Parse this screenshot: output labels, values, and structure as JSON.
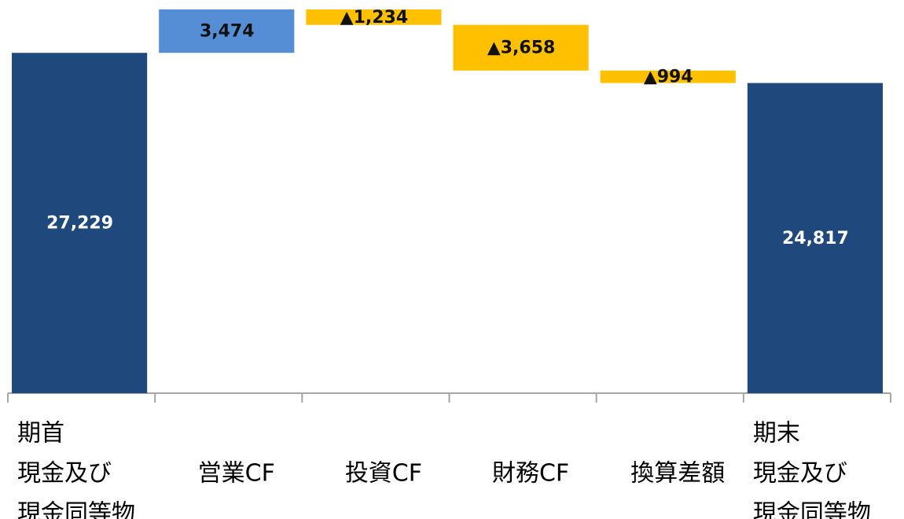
{
  "chart_data": {
    "type": "waterfall",
    "categories": [
      [
        "期首",
        "現金及び",
        "現金同等物"
      ],
      [
        "営業CF"
      ],
      [
        "投資CF"
      ],
      [
        "財務CF"
      ],
      [
        "換算差額"
      ],
      [
        "期末",
        "現金及び",
        "現金同等物"
      ]
    ],
    "values": [
      27229,
      3474,
      -1234,
      -3658,
      -994,
      24817
    ],
    "value_labels": [
      "27,229",
      "3,474",
      "▲1,234",
      "▲3,658",
      "▲994",
      "24,817"
    ],
    "measure": [
      "total",
      "relative",
      "relative",
      "relative",
      "relative",
      "total"
    ],
    "colors": {
      "total": "#1f497d",
      "increase": "#558ed5",
      "decrease": "#ffc000"
    }
  }
}
